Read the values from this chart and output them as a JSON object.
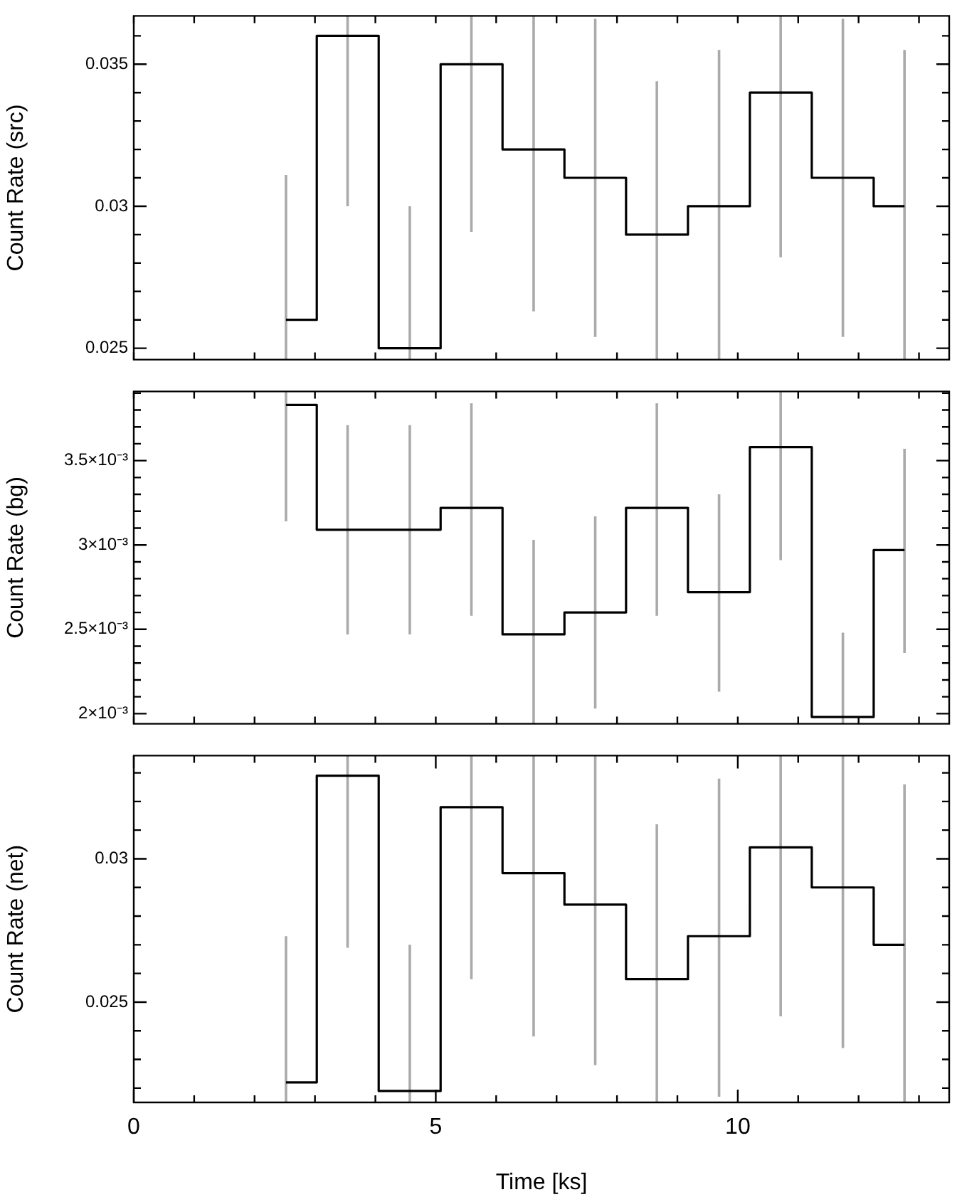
{
  "chart_data": [
    {
      "type": "step",
      "ylabel": "Count Rate (src)",
      "x": [
        2.52,
        3.54,
        4.57,
        5.59,
        6.62,
        7.64,
        8.66,
        9.69,
        10.71,
        11.74,
        12.76
      ],
      "series": [
        {
          "color": "#000000",
          "values": [
            0.026,
            0.036,
            0.025,
            0.035,
            0.032,
            0.031,
            0.029,
            0.03,
            0.034,
            0.031,
            0.03
          ],
          "errors": [
            [
              0.0246,
              0.0311
            ],
            [
              0.03,
              0.0367
            ],
            [
              0.0246,
              0.03
            ],
            [
              0.0291,
              0.0367
            ],
            [
              0.0263,
              0.0367
            ],
            [
              0.0254,
              0.0366
            ],
            [
              0.0246,
              0.0344
            ],
            [
              0.0246,
              0.0355
            ],
            [
              0.0282,
              0.0367
            ],
            [
              0.0254,
              0.0366
            ],
            [
              0.0246,
              0.0355
            ]
          ]
        }
      ],
      "xlim": [
        0,
        13.5
      ],
      "ylim": [
        0.0246,
        0.0367
      ],
      "xticks": [
        {
          "value": 0,
          "label": null
        },
        {
          "value": 1,
          "label": null
        },
        {
          "value": 2,
          "label": null
        },
        {
          "value": 3,
          "label": null
        },
        {
          "value": 4,
          "label": null
        },
        {
          "value": 5,
          "label": null
        },
        {
          "value": 6,
          "label": null
        },
        {
          "value": 7,
          "label": null
        },
        {
          "value": 8,
          "label": null
        },
        {
          "value": 9,
          "label": null
        },
        {
          "value": 10,
          "label": null
        },
        {
          "value": 11,
          "label": null
        },
        {
          "value": 12,
          "label": null
        },
        {
          "value": 13,
          "label": null
        }
      ],
      "yticks": [
        {
          "value": 0.025,
          "label": "0.025"
        },
        {
          "value": 0.026,
          "label": null
        },
        {
          "value": 0.027,
          "label": null
        },
        {
          "value": 0.028,
          "label": null
        },
        {
          "value": 0.029,
          "label": null
        },
        {
          "value": 0.03,
          "label": "0.03"
        },
        {
          "value": 0.031,
          "label": null
        },
        {
          "value": 0.032,
          "label": null
        },
        {
          "value": 0.033,
          "label": null
        },
        {
          "value": 0.034,
          "label": null
        },
        {
          "value": 0.035,
          "label": "0.035"
        },
        {
          "value": 0.036,
          "label": null
        }
      ],
      "tick_labels": "y",
      "grid": false,
      "legend": false
    },
    {
      "type": "step",
      "ylabel": "Count Rate (bg)",
      "x": [
        2.52,
        3.54,
        4.57,
        5.59,
        6.62,
        7.64,
        8.66,
        9.69,
        10.71,
        11.74,
        12.76
      ],
      "series": [
        {
          "color": "#000000",
          "values": [
            0.00383,
            0.00309,
            0.00309,
            0.00322,
            0.00247,
            0.0026,
            0.00322,
            0.00272,
            0.00358,
            0.00198,
            0.00297
          ],
          "errors": [
            [
              0.00314,
              0.00391
            ],
            [
              0.00247,
              0.00371
            ],
            [
              0.00247,
              0.00371
            ],
            [
              0.00258,
              0.00384
            ],
            [
              0.00194,
              0.00303
            ],
            [
              0.00203,
              0.00317
            ],
            [
              0.00258,
              0.00384
            ],
            [
              0.00213,
              0.0033
            ],
            [
              0.00291,
              0.00391
            ],
            [
              0.00194,
              0.00248
            ],
            [
              0.00236,
              0.00357
            ]
          ]
        }
      ],
      "xlim": [
        0,
        13.5
      ],
      "ylim": [
        0.00194,
        0.00391
      ],
      "xticks": [
        {
          "value": 0,
          "label": null
        },
        {
          "value": 1,
          "label": null
        },
        {
          "value": 2,
          "label": null
        },
        {
          "value": 3,
          "label": null
        },
        {
          "value": 4,
          "label": null
        },
        {
          "value": 5,
          "label": null
        },
        {
          "value": 6,
          "label": null
        },
        {
          "value": 7,
          "label": null
        },
        {
          "value": 8,
          "label": null
        },
        {
          "value": 9,
          "label": null
        },
        {
          "value": 10,
          "label": null
        },
        {
          "value": 11,
          "label": null
        },
        {
          "value": 12,
          "label": null
        },
        {
          "value": 13,
          "label": null
        }
      ],
      "yticks": [
        {
          "value": 0.002,
          "label": "2×10⁻³"
        },
        {
          "value": 0.0021,
          "label": null
        },
        {
          "value": 0.0022,
          "label": null
        },
        {
          "value": 0.0023,
          "label": null
        },
        {
          "value": 0.0024,
          "label": null
        },
        {
          "value": 0.0025,
          "label": "2.5×10⁻³"
        },
        {
          "value": 0.0026,
          "label": null
        },
        {
          "value": 0.0027,
          "label": null
        },
        {
          "value": 0.0028,
          "label": null
        },
        {
          "value": 0.0029,
          "label": null
        },
        {
          "value": 0.003,
          "label": "3×10⁻³"
        },
        {
          "value": 0.0031,
          "label": null
        },
        {
          "value": 0.0032,
          "label": null
        },
        {
          "value": 0.0033,
          "label": null
        },
        {
          "value": 0.0034,
          "label": null
        },
        {
          "value": 0.0035,
          "label": "3.5×10⁻³"
        },
        {
          "value": 0.0036,
          "label": null
        },
        {
          "value": 0.0037,
          "label": null
        },
        {
          "value": 0.0038,
          "label": null
        },
        {
          "value": 0.0039,
          "label": null
        }
      ],
      "tick_labels": "y",
      "grid": false,
      "legend": false
    },
    {
      "type": "step",
      "ylabel": "Count Rate (net)",
      "xlabel": "Time [ks]",
      "x": [
        2.52,
        3.54,
        4.57,
        5.59,
        6.62,
        7.64,
        8.66,
        9.69,
        10.71,
        11.74,
        12.76
      ],
      "series": [
        {
          "color": "#000000",
          "values": [
            0.0222,
            0.0329,
            0.0219,
            0.0318,
            0.0295,
            0.0284,
            0.0258,
            0.0273,
            0.0304,
            0.029,
            0.027
          ],
          "errors": [
            [
              0.0215,
              0.0273
            ],
            [
              0.0269,
              0.0336
            ],
            [
              0.0215,
              0.027
            ],
            [
              0.0258,
              0.0336
            ],
            [
              0.0238,
              0.0336
            ],
            [
              0.0228,
              0.0336
            ],
            [
              0.0215,
              0.0312
            ],
            [
              0.0217,
              0.0328
            ],
            [
              0.0245,
              0.0336
            ],
            [
              0.0234,
              0.0336
            ],
            [
              0.0215,
              0.0326
            ]
          ]
        }
      ],
      "xlim": [
        0,
        13.5
      ],
      "ylim": [
        0.0215,
        0.0336
      ],
      "xticks": [
        {
          "value": 0,
          "label": "0"
        },
        {
          "value": 1,
          "label": null
        },
        {
          "value": 2,
          "label": null
        },
        {
          "value": 3,
          "label": null
        },
        {
          "value": 4,
          "label": null
        },
        {
          "value": 5,
          "label": "5"
        },
        {
          "value": 6,
          "label": null
        },
        {
          "value": 7,
          "label": null
        },
        {
          "value": 8,
          "label": null
        },
        {
          "value": 9,
          "label": null
        },
        {
          "value": 10,
          "label": "10"
        },
        {
          "value": 11,
          "label": null
        },
        {
          "value": 12,
          "label": null
        },
        {
          "value": 13,
          "label": null
        }
      ],
      "yticks": [
        {
          "value": 0.022,
          "label": null
        },
        {
          "value": 0.023,
          "label": null
        },
        {
          "value": 0.024,
          "label": null
        },
        {
          "value": 0.025,
          "label": "0.025"
        },
        {
          "value": 0.026,
          "label": null
        },
        {
          "value": 0.027,
          "label": null
        },
        {
          "value": 0.028,
          "label": null
        },
        {
          "value": 0.029,
          "label": null
        },
        {
          "value": 0.03,
          "label": "0.03"
        },
        {
          "value": 0.031,
          "label": null
        },
        {
          "value": 0.032,
          "label": null
        },
        {
          "value": 0.033,
          "label": null
        }
      ],
      "grid": false,
      "legend": false
    }
  ]
}
